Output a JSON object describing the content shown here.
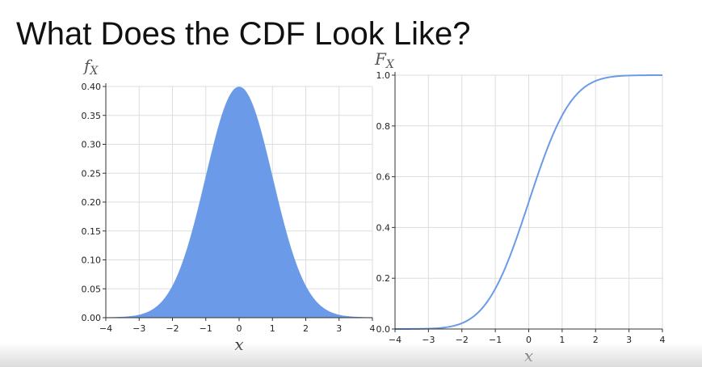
{
  "slide": {
    "title": "What Does the CDF Look Like?"
  },
  "colors": {
    "pdf_fill": "#6b9be8",
    "cdf_line": "#6b9be8",
    "grid": "#dddddd",
    "axis": "#333333"
  },
  "chart_data": [
    {
      "type": "area",
      "title": "",
      "xlabel": "x",
      "ylabel": "f",
      "ylabel_sub": "X",
      "xlim": [
        -4,
        4
      ],
      "ylim": [
        0,
        0.4
      ],
      "x_ticks": [
        -4,
        -3,
        -2,
        -1,
        0,
        1,
        2,
        3,
        4
      ],
      "x_tick_labels": [
        "−4",
        "−3",
        "−2",
        "−1",
        "0",
        "1",
        "2",
        "3",
        "4"
      ],
      "y_ticks": [
        0.0,
        0.05,
        0.1,
        0.15,
        0.2,
        0.25,
        0.3,
        0.35,
        0.4
      ],
      "y_tick_labels": [
        "0.00",
        "0.05",
        "0.10",
        "0.15",
        "0.20",
        "0.25",
        "0.30",
        "0.35",
        "0.40"
      ],
      "grid": true,
      "series": [
        {
          "x": [
            -4,
            -3.5,
            -3,
            -2.5,
            -2,
            -1.5,
            -1,
            -0.5,
            0,
            0.5,
            1,
            1.5,
            2,
            2.5,
            3,
            3.5,
            4
          ],
          "values": [
            0.0001,
            0.0009,
            0.0044,
            0.0175,
            0.054,
            0.1295,
            0.242,
            0.352,
            0.399,
            0.352,
            0.242,
            0.1295,
            0.054,
            0.0175,
            0.0044,
            0.0009,
            0.0001
          ]
        }
      ]
    },
    {
      "type": "line",
      "title": "",
      "xlabel": "x",
      "ylabel": "F",
      "ylabel_sub": "X",
      "xlim": [
        -4,
        4
      ],
      "ylim": [
        0,
        1.0
      ],
      "x_ticks": [
        -4,
        -3,
        -2,
        -1,
        0,
        1,
        2,
        3,
        4
      ],
      "x_tick_labels": [
        "−4",
        "−3",
        "−2",
        "−1",
        "0",
        "1",
        "2",
        "3",
        "4"
      ],
      "y_ticks": [
        0.0,
        0.2,
        0.4,
        0.6,
        0.8,
        1.0
      ],
      "y_tick_labels": [
        "0.0",
        "0.2",
        "0.4",
        "0.6",
        "0.8",
        "1.0"
      ],
      "grid": true,
      "series": [
        {
          "x": [
            -4,
            -3.5,
            -3,
            -2.5,
            -2,
            -1.5,
            -1,
            -0.5,
            0,
            0.5,
            1,
            1.5,
            2,
            2.5,
            3,
            3.5,
            4
          ],
          "values": [
            0.0,
            0.0002,
            0.0013,
            0.0062,
            0.0228,
            0.0668,
            0.1587,
            0.3085,
            0.5,
            0.6915,
            0.8413,
            0.9332,
            0.9772,
            0.9938,
            0.9987,
            0.9998,
            1.0
          ]
        }
      ]
    }
  ]
}
